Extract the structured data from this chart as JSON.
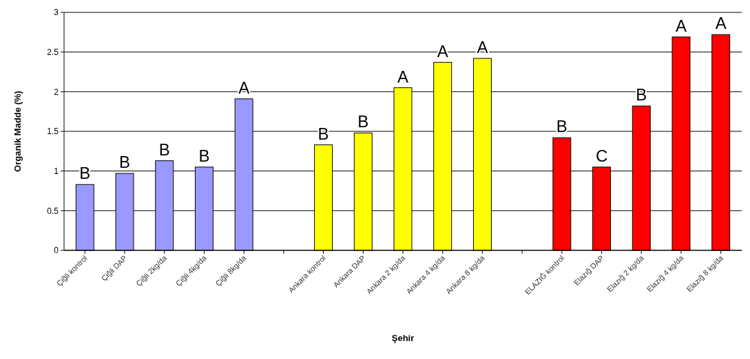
{
  "chart_data": {
    "type": "bar",
    "xlabel": "Şehir",
    "ylabel": "Organik Madde (%)",
    "categories": [
      "Çiğli kontrol",
      "Çiğli DAP",
      "Çiğli 2kg/da",
      "Çiğli 4kg/da",
      "Çiğli 8kg/da",
      null,
      "Ankara kontrol",
      "Ankara DAP",
      "Ankara 2 kg/da",
      "Ankara 4 kg/da",
      "Ankara 8 kg/da",
      null,
      "ELAZIĞ kontrol",
      "Elazığ DAP",
      "Elazığ 2 kg/da",
      "Elazığ 4 kg/da",
      "Elazığ 8 kg/da"
    ],
    "values": [
      0.83,
      0.97,
      1.13,
      1.05,
      1.91,
      null,
      1.33,
      1.48,
      2.05,
      2.37,
      2.42,
      null,
      1.42,
      1.05,
      1.82,
      2.69,
      2.72
    ],
    "colors": [
      "#9999ff",
      "#9999ff",
      "#9999ff",
      "#9999ff",
      "#9999ff",
      null,
      "#ffff00",
      "#ffff00",
      "#ffff00",
      "#ffff00",
      "#ffff00",
      null,
      "#ff0000",
      "#ff0000",
      "#ff0000",
      "#ff0000",
      "#ff0000"
    ],
    "ylim": [
      0,
      3
    ],
    "yticks": [
      0,
      0.5,
      1,
      1.5,
      2,
      2.5,
      3
    ],
    "grid": "y",
    "annotations": [
      {
        "text": "B",
        "x": "Çiğli kontrol",
        "y": 0.83
      },
      {
        "text": "B",
        "x": "Çiğli DAP",
        "y": 0.97
      },
      {
        "text": "B",
        "x": "Çiğli 2kg/da",
        "y": 1.13
      },
      {
        "text": "B",
        "x": "Çiğli 4kg/da",
        "y": 1.05
      },
      {
        "text": "A",
        "x": "Çiğli 8kg/da",
        "y": 1.91
      },
      {
        "text": "B",
        "x": "Ankara kontrol",
        "y": 1.33
      },
      {
        "text": "B",
        "x": "Ankara DAP",
        "y": 1.48
      },
      {
        "text": "A",
        "x": "Ankara 2 kg/da",
        "y": 2.05
      },
      {
        "text": "A",
        "x": "Ankara 4 kg/da",
        "y": 2.37
      },
      {
        "text": "A",
        "x": "Ankara 8 kg/da",
        "y": 2.42
      },
      {
        "text": "B",
        "x": "ELAZIĞ kontrol",
        "y": 1.42
      },
      {
        "text": "C",
        "x": "Elazığ DAP",
        "y": 1.05
      },
      {
        "text": "B",
        "x": "Elazığ 2 kg/da",
        "y": 1.82
      },
      {
        "text": "A",
        "x": "Elazığ 4 kg/da",
        "y": 2.69
      },
      {
        "text": "A",
        "x": "Elazığ 8 kg/da",
        "y": 2.72
      }
    ]
  }
}
